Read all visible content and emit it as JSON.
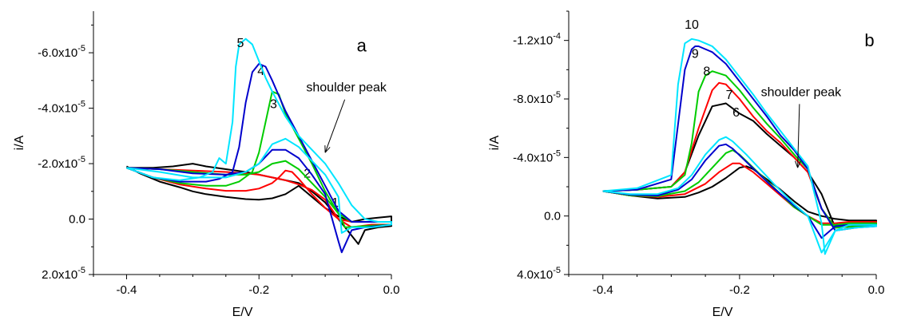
{
  "chart_data": [
    {
      "type": "line",
      "panel_label": "a",
      "xlabel": "E/V",
      "ylabel": "i/A",
      "xlim": [
        -0.45,
        0.0
      ],
      "ylim": [
        2e-05,
        -7.5e-05
      ],
      "y_inverted": true,
      "xticks": [
        {
          "value": -0.4,
          "label": "-0.4"
        },
        {
          "value": -0.2,
          "label": "-0.2"
        },
        {
          "value": 0.0,
          "label": "0.0"
        }
      ],
      "yticks": [
        {
          "value": -6e-05,
          "label": "-6.0x10",
          "exp": "-5"
        },
        {
          "value": -4e-05,
          "label": "-4.0x10",
          "exp": "-5"
        },
        {
          "value": -2e-05,
          "label": "-2.0x10",
          "exp": "-5"
        },
        {
          "value": 0.0,
          "label": "0.0",
          "exp": ""
        },
        {
          "value": 2e-05,
          "label": "2.0x10",
          "exp": "-5"
        }
      ],
      "annotation": {
        "text": "shoulder peak",
        "x": -0.068,
        "y": -4.6e-05,
        "arrow_to": [
          -0.1,
          -2.4e-05
        ]
      },
      "series": [
        {
          "label": "1",
          "color": "#000000",
          "x": [
            -0.4,
            -0.38,
            -0.35,
            -0.32,
            -0.3,
            -0.28,
            -0.25,
            -0.22,
            -0.2,
            -0.18,
            -0.16,
            -0.14,
            -0.12,
            -0.1,
            -0.08,
            -0.06,
            -0.04,
            -0.02,
            0.0,
            0.0,
            -0.02,
            -0.04,
            -0.05,
            -0.06,
            -0.07,
            -0.08,
            -0.1,
            -0.12,
            -0.14,
            -0.16,
            -0.18,
            -0.2,
            -0.22,
            -0.25,
            -0.28,
            -0.3,
            -0.33,
            -0.36,
            -0.4
          ],
          "y": [
            -1.9e-05,
            -1.65e-05,
            -1.35e-05,
            -1.15e-05,
            -1e-05,
            -9e-06,
            -8e-06,
            -7.2e-06,
            -7e-06,
            -7.5e-06,
            -9e-06,
            -1.2e-05,
            -8e-06,
            -4e-06,
            -1e-06,
            1e-06,
            0.0,
            -5e-07,
            -1e-06,
            2.5e-06,
            3e-06,
            4e-06,
            9e-06,
            6e-06,
            3e-06,
            0.0,
            -6e-06,
            -1e-05,
            -1.3e-05,
            -1.4e-05,
            -1.5e-05,
            -1.6e-05,
            -1.7e-05,
            -1.8e-05,
            -1.9e-05,
            -2e-05,
            -1.9e-05,
            -1.85e-05,
            -1.85e-05
          ]
        },
        {
          "label": "2",
          "color": "#ff0000",
          "x": [
            -0.4,
            -0.36,
            -0.32,
            -0.28,
            -0.25,
            -0.22,
            -0.2,
            -0.18,
            -0.17,
            -0.16,
            -0.15,
            -0.14,
            -0.12,
            -0.1,
            -0.08,
            -0.06,
            -0.04,
            -0.02,
            0.0,
            0.0,
            -0.03,
            -0.06,
            -0.08,
            -0.1,
            -0.12,
            -0.14,
            -0.16,
            -0.18,
            -0.2,
            -0.22,
            -0.25,
            -0.3,
            -0.35,
            -0.4
          ],
          "y": [
            -1.85e-05,
            -1.5e-05,
            -1.25e-05,
            -1.1e-05,
            -1.02e-05,
            -1.02e-05,
            -1.1e-05,
            -1.3e-05,
            -1.5e-05,
            -1.75e-05,
            -1.7e-05,
            -1.45e-05,
            -9e-06,
            -4e-06,
            0.0,
            1e-06,
            1e-06,
            1e-06,
            1e-06,
            2e-06,
            2e-06,
            3e-06,
            0.0,
            -7e-06,
            -1.05e-05,
            -1.25e-05,
            -1.4e-05,
            -1.5e-05,
            -1.6e-05,
            -1.65e-05,
            -1.7e-05,
            -1.75e-05,
            -1.8e-05,
            -1.85e-05
          ]
        },
        {
          "label": "3",
          "color": "#00cc00",
          "x": [
            -0.4,
            -0.36,
            -0.32,
            -0.28,
            -0.25,
            -0.23,
            -0.21,
            -0.2,
            -0.19,
            -0.18,
            -0.17,
            -0.16,
            -0.14,
            -0.12,
            -0.1,
            -0.08,
            -0.06,
            -0.04,
            -0.02,
            0.0,
            0.0,
            -0.04,
            -0.07,
            -0.08,
            -0.1,
            -0.12,
            -0.14,
            -0.16,
            -0.18,
            -0.2,
            -0.22,
            -0.25,
            -0.3,
            -0.35,
            -0.4
          ],
          "y": [
            -1.85e-05,
            -1.5e-05,
            -1.3e-05,
            -1.2e-05,
            -1.2e-05,
            -1.35e-05,
            -1.7e-05,
            -2.4e-05,
            -3.5e-05,
            -4.6e-05,
            -4.5e-05,
            -3.8e-05,
            -2.9e-05,
            -2e-05,
            -1e-05,
            -2e-06,
            1e-06,
            1e-06,
            1e-06,
            1e-06,
            2e-06,
            2.5e-06,
            3e-06,
            -2e-06,
            -8e-06,
            -1.3e-05,
            -1.8e-05,
            -2.1e-05,
            -2e-05,
            -1.7e-05,
            -1.6e-05,
            -1.6e-05,
            -1.7e-05,
            -1.8e-05,
            -1.85e-05
          ]
        },
        {
          "label": "4",
          "color": "#0000cc",
          "x": [
            -0.4,
            -0.36,
            -0.32,
            -0.28,
            -0.26,
            -0.24,
            -0.23,
            -0.22,
            -0.21,
            -0.2,
            -0.19,
            -0.18,
            -0.16,
            -0.14,
            -0.12,
            -0.1,
            -0.08,
            -0.06,
            -0.04,
            -0.02,
            0.0,
            0.0,
            -0.04,
            -0.06,
            -0.075,
            -0.08,
            -0.1,
            -0.12,
            -0.14,
            -0.16,
            -0.18,
            -0.2,
            -0.22,
            -0.25,
            -0.3,
            -0.35,
            -0.4
          ],
          "y": [
            -1.85e-05,
            -1.5e-05,
            -1.35e-05,
            -1.35e-05,
            -1.45e-05,
            -1.7e-05,
            -2.6e-05,
            -4.2e-05,
            -5.3e-05,
            -5.6e-05,
            -5.5e-05,
            -5e-05,
            -3.9e-05,
            -3e-05,
            -2.1e-05,
            -1.2e-05,
            -3e-06,
            1e-06,
            1e-06,
            1e-06,
            1e-06,
            2e-06,
            3e-06,
            4e-06,
            1.2e-05,
            8e-06,
            -9e-06,
            -1.6e-05,
            -2.2e-05,
            -2.5e-05,
            -2.5e-05,
            -2e-05,
            -1.7e-05,
            -1.6e-05,
            -1.65e-05,
            -1.8e-05,
            -1.85e-05
          ]
        },
        {
          "label": "5",
          "color": "#00e5ff",
          "x": [
            -0.4,
            -0.36,
            -0.32,
            -0.29,
            -0.27,
            -0.26,
            -0.25,
            -0.24,
            -0.235,
            -0.23,
            -0.22,
            -0.21,
            -0.2,
            -0.19,
            -0.18,
            -0.16,
            -0.14,
            -0.12,
            -0.1,
            -0.08,
            -0.06,
            -0.04,
            -0.02,
            0.0,
            0.0,
            -0.03,
            -0.06,
            -0.075,
            -0.08,
            -0.1,
            -0.12,
            -0.14,
            -0.16,
            -0.18,
            -0.2,
            -0.22,
            -0.25,
            -0.3,
            -0.35,
            -0.4
          ],
          "y": [
            -1.85e-05,
            -1.5e-05,
            -1.4e-05,
            -1.5e-05,
            -1.7e-05,
            -2.2e-05,
            -2e-05,
            -3.5e-05,
            -5.5e-05,
            -6.3e-05,
            -6.5e-05,
            -6.3e-05,
            -5.7e-05,
            -5.1e-05,
            -4.6e-05,
            -3.7e-05,
            -3e-05,
            -2.5e-05,
            -2e-05,
            -1.3e-05,
            -5e-06,
            0.0,
            1e-06,
            1e-06,
            2e-06,
            3e-06,
            3e-06,
            5e-06,
            -8e-06,
            -1.6e-05,
            -2.1e-05,
            -2.6e-05,
            -2.9e-05,
            -2.7e-05,
            -2e-05,
            -1.7e-05,
            -1.5e-05,
            -1.5e-05,
            -1.7e-05,
            -1.85e-05
          ]
        }
      ]
    },
    {
      "type": "line",
      "panel_label": "b",
      "xlabel": "E/V",
      "ylabel": "i/A",
      "xlim": [
        -0.45,
        0.0
      ],
      "ylim": [
        4e-05,
        -0.00014
      ],
      "y_inverted": true,
      "xticks": [
        {
          "value": -0.4,
          "label": "-0.4"
        },
        {
          "value": -0.2,
          "label": "-0.2"
        },
        {
          "value": 0.0,
          "label": "0.0"
        }
      ],
      "yticks": [
        {
          "value": -0.00012,
          "label": "-1.2x10",
          "exp": "-4"
        },
        {
          "value": -8e-05,
          "label": "-8.0x10",
          "exp": "-5"
        },
        {
          "value": -4e-05,
          "label": "-4.0x10",
          "exp": "-5"
        },
        {
          "value": 0.0,
          "label": "0.0",
          "exp": ""
        },
        {
          "value": 4e-05,
          "label": "4.0x10",
          "exp": "-5"
        }
      ],
      "annotation": {
        "text": "shoulder peak",
        "x": -0.11,
        "y": -8.2e-05,
        "arrow_to": [
          -0.115,
          -3.3e-05
        ]
      },
      "series": [
        {
          "label": "6",
          "color": "#000000",
          "x": [
            -0.4,
            -0.36,
            -0.32,
            -0.28,
            -0.26,
            -0.24,
            -0.22,
            -0.2,
            -0.19,
            -0.18,
            -0.16,
            -0.14,
            -0.12,
            -0.1,
            -0.08,
            -0.06,
            -0.04,
            -0.02,
            0.0,
            0.0,
            -0.03,
            -0.06,
            -0.08,
            -0.1,
            -0.12,
            -0.14,
            -0.16,
            -0.18,
            -0.2,
            -0.22,
            -0.24,
            -0.26,
            -0.28,
            -0.3,
            -0.35,
            -0.4
          ],
          "y": [
            -1.7e-05,
            -1.4e-05,
            -1.2e-05,
            -1.3e-05,
            -1.6e-05,
            -2e-05,
            -2.6e-05,
            -3.3e-05,
            -3.4e-05,
            -3.2e-05,
            -2.5e-05,
            -1.8e-05,
            -1e-05,
            -3e-06,
            0.0,
            2e-06,
            3e-06,
            3e-06,
            3e-06,
            6e-06,
            7e-06,
            8e-06,
            -1.5e-05,
            -3e-05,
            -4e-05,
            -4.8e-05,
            -5.6e-05,
            -6.5e-05,
            -7e-05,
            -7.7e-05,
            -7.5e-05,
            -5.5e-05,
            -3e-05,
            -2e-05,
            -1.8e-05,
            -1.7e-05
          ]
        },
        {
          "label": "7",
          "color": "#ff0000",
          "x": [
            -0.4,
            -0.36,
            -0.32,
            -0.28,
            -0.25,
            -0.23,
            -0.21,
            -0.2,
            -0.18,
            -0.16,
            -0.14,
            -0.12,
            -0.1,
            -0.08,
            -0.06,
            -0.04,
            -0.02,
            0.0,
            0.0,
            -0.03,
            -0.06,
            -0.08,
            -0.1,
            -0.12,
            -0.14,
            -0.16,
            -0.18,
            -0.2,
            -0.22,
            -0.23,
            -0.24,
            -0.26,
            -0.28,
            -0.3,
            -0.35,
            -0.4
          ],
          "y": [
            -1.7e-05,
            -1.4e-05,
            -1.3e-05,
            -1.5e-05,
            -2.2e-05,
            -3e-05,
            -3.6e-05,
            -3.6e-05,
            -3e-05,
            -2.2e-05,
            -1.4e-05,
            -6e-06,
            0.0,
            5e-06,
            5e-06,
            4e-06,
            4e-06,
            4e-06,
            6e-06,
            7e-06,
            8e-06,
            -5e-06,
            -3e-05,
            -4e-05,
            -5e-05,
            -5.8e-05,
            -6.8e-05,
            -8e-05,
            -9e-05,
            -9.1e-05,
            -8.6e-05,
            -6e-05,
            -3e-05,
            -2e-05,
            -1.8e-05,
            -1.7e-05
          ]
        },
        {
          "label": "8",
          "color": "#00cc00",
          "x": [
            -0.4,
            -0.36,
            -0.32,
            -0.28,
            -0.26,
            -0.24,
            -0.22,
            -0.21,
            -0.2,
            -0.18,
            -0.16,
            -0.14,
            -0.12,
            -0.1,
            -0.08,
            -0.06,
            -0.04,
            -0.02,
            0.0,
            0.0,
            -0.03,
            -0.06,
            -0.08,
            -0.1,
            -0.12,
            -0.14,
            -0.16,
            -0.18,
            -0.2,
            -0.22,
            -0.24,
            -0.25,
            -0.26,
            -0.27,
            -0.28,
            -0.3,
            -0.35,
            -0.4
          ],
          "y": [
            -1.7e-05,
            -1.4e-05,
            -1.35e-05,
            -1.7e-05,
            -2.3e-05,
            -3.3e-05,
            -4.3e-05,
            -4.5e-05,
            -4.2e-05,
            -3.3e-05,
            -2.4e-05,
            -1.5e-05,
            -6e-06,
            0.0,
            6e-06,
            6e-06,
            5e-06,
            5e-06,
            5e-06,
            6e-06,
            7e-06,
            8e-06,
            -5e-06,
            -3.2e-05,
            -4.2e-05,
            -5.3e-05,
            -6.3e-05,
            -7.4e-05,
            -8.6e-05,
            -9.6e-05,
            -9.9e-05,
            -9.6e-05,
            -8.5e-05,
            -5e-05,
            -2.8e-05,
            -2e-05,
            -1.8e-05,
            -1.7e-05
          ]
        },
        {
          "label": "9",
          "color": "#0000cc",
          "x": [
            -0.4,
            -0.36,
            -0.32,
            -0.29,
            -0.27,
            -0.25,
            -0.23,
            -0.22,
            -0.21,
            -0.19,
            -0.17,
            -0.15,
            -0.12,
            -0.1,
            -0.08,
            -0.06,
            -0.04,
            -0.02,
            0.0,
            0.0,
            -0.03,
            -0.06,
            -0.08,
            -0.1,
            -0.12,
            -0.14,
            -0.16,
            -0.18,
            -0.2,
            -0.22,
            -0.24,
            -0.26,
            -0.265,
            -0.27,
            -0.28,
            -0.3,
            -0.35,
            -0.4
          ],
          "y": [
            -1.7e-05,
            -1.45e-05,
            -1.4e-05,
            -1.8e-05,
            -2.5e-05,
            -3.8e-05,
            -4.8e-05,
            -4.9e-05,
            -4.6e-05,
            -3.7e-05,
            -2.8e-05,
            -1.9e-05,
            -7e-06,
            0.0,
            1.5e-05,
            7e-06,
            6e-06,
            6e-06,
            6e-06,
            7e-06,
            8e-06,
            1e-05,
            -5e-06,
            -3.2e-05,
            -4.5e-05,
            -5.5e-05,
            -6.8e-05,
            -8e-05,
            -9.2e-05,
            -0.000104,
            -0.000112,
            -0.000116,
            -0.000116,
            -0.000114,
            -0.0001,
            -2.5e-05,
            -1.8e-05,
            -1.7e-05
          ]
        },
        {
          "label": "10",
          "color": "#00e5ff",
          "x": [
            -0.4,
            -0.36,
            -0.32,
            -0.29,
            -0.27,
            -0.25,
            -0.23,
            -0.22,
            -0.21,
            -0.19,
            -0.17,
            -0.15,
            -0.12,
            -0.1,
            -0.08,
            -0.06,
            -0.04,
            -0.02,
            0.0,
            0.0,
            -0.03,
            -0.06,
            -0.075,
            -0.08,
            -0.1,
            -0.12,
            -0.14,
            -0.16,
            -0.18,
            -0.2,
            -0.22,
            -0.24,
            -0.26,
            -0.27,
            -0.28,
            -0.29,
            -0.3,
            -0.35,
            -0.4
          ],
          "y": [
            -1.7e-05,
            -1.5e-05,
            -1.5e-05,
            -1.9e-05,
            -2.8e-05,
            -4.2e-05,
            -5.2e-05,
            -5.4e-05,
            -5.1e-05,
            -4.2e-05,
            -3.2e-05,
            -2.2e-05,
            -8e-06,
            0.0,
            2.5e-05,
            1e-05,
            6e-06,
            6e-06,
            6e-06,
            7e-06,
            8e-06,
            1e-05,
            2.6e-05,
            5e-06,
            -3.4e-05,
            -4.6e-05,
            -5.8e-05,
            -7e-05,
            -8.3e-05,
            -9.5e-05,
            -0.000107,
            -0.000116,
            -0.00012,
            -0.000121,
            -0.000118,
            -9e-05,
            -2.8e-05,
            -1.9e-05,
            -1.7e-05
          ]
        }
      ]
    }
  ]
}
